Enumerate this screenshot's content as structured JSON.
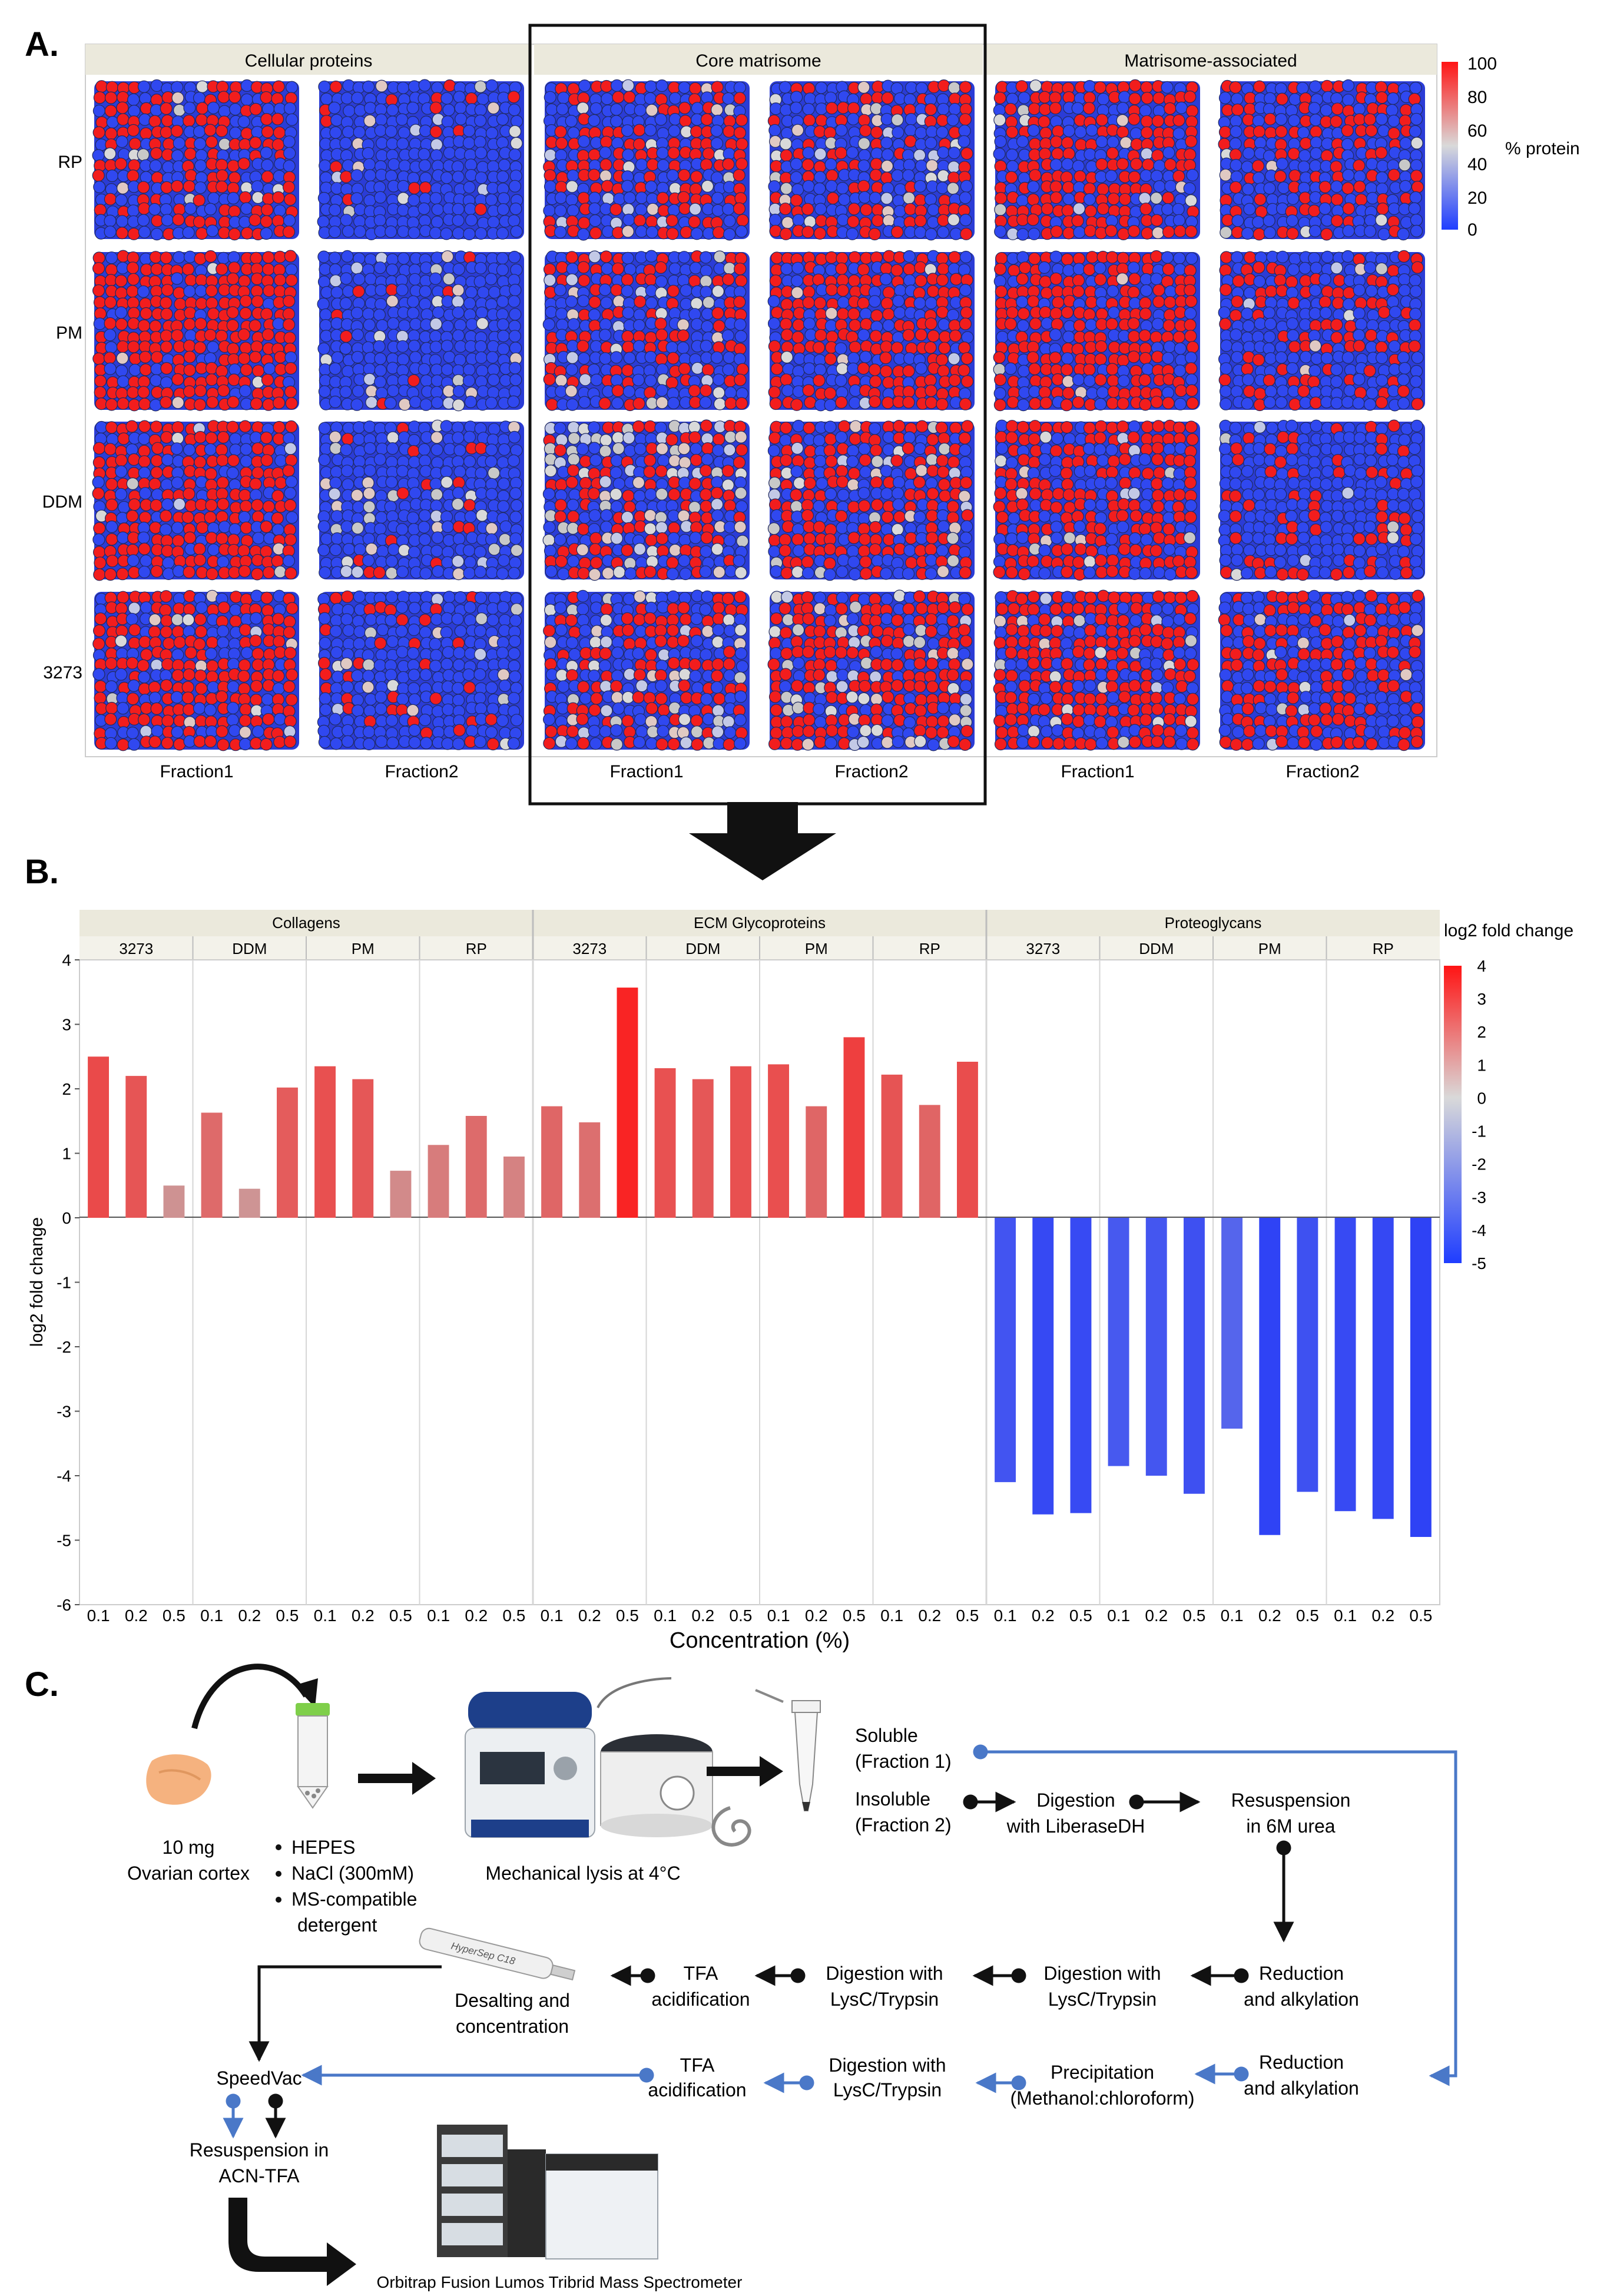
{
  "panelA": {
    "label": "A.",
    "groups": [
      "Cellular proteins",
      "Core matrisome",
      "Matrisome-associated"
    ],
    "rows": [
      "RP",
      "PM",
      "DDM",
      "3273"
    ],
    "fractions": [
      "Fraction1",
      "Fraction2"
    ],
    "colorbar": {
      "title": "% protein",
      "ticks": [
        "100",
        "80",
        "60",
        "40",
        "20",
        "0"
      ],
      "high": "#ff1414",
      "mid": "#d9d9d9",
      "low": "#1f3dff"
    },
    "chart_data": {
      "type": "heatmap",
      "x": [
        "Fraction1",
        "Fraction2"
      ],
      "facets": [
        "Cellular proteins",
        "Core matrisome",
        "Matrisome-associated"
      ],
      "y": [
        "RP",
        "PM",
        "DDM",
        "3273"
      ],
      "red_share": [
        [
          0.55,
          0.04,
          0.5,
          0.4,
          0.6,
          0.45
        ],
        [
          0.8,
          0.03,
          0.4,
          0.62,
          0.65,
          0.35
        ],
        [
          0.72,
          0.07,
          0.35,
          0.55,
          0.58,
          0.25
        ],
        [
          0.68,
          0.12,
          0.4,
          0.55,
          0.65,
          0.5
        ]
      ],
      "grey_share": [
        [
          0.05,
          0.06,
          0.1,
          0.15,
          0.05,
          0.03
        ],
        [
          0.02,
          0.1,
          0.12,
          0.05,
          0.03,
          0.02
        ],
        [
          0.03,
          0.15,
          0.3,
          0.12,
          0.06,
          0.03
        ],
        [
          0.08,
          0.05,
          0.2,
          0.25,
          0.08,
          0.04
        ]
      ]
    }
  },
  "panelB": {
    "label": "B.",
    "ylabel": "log2 fold change",
    "xlabel": "Concentration (%)",
    "colorbar_title": "log2 fold change",
    "colorbar_ticks": [
      "4",
      "3",
      "2",
      "1",
      "0",
      "-1",
      "-2",
      "-3",
      "-4",
      "-5"
    ],
    "chart_data": {
      "type": "bar",
      "ylim": [
        -6,
        4
      ],
      "yticks": [
        "4",
        "3",
        "2",
        "1",
        "0",
        "-1",
        "-2",
        "-3",
        "-4",
        "-5",
        "-6"
      ],
      "groups": [
        "Collagens",
        "ECM Glycoproteins",
        "Proteoglycans"
      ],
      "detergents": [
        "3273",
        "DDM",
        "PM",
        "RP"
      ],
      "concentrations": [
        "0.1",
        "0.2",
        "0.5"
      ],
      "values": [
        [
          [
            2.5,
            2.2,
            0.5
          ],
          [
            1.63,
            0.45,
            2.02
          ],
          [
            2.35,
            2.15,
            0.73
          ],
          [
            1.13,
            1.58,
            0.95
          ]
        ],
        [
          [
            1.73,
            1.48,
            3.57
          ],
          [
            2.32,
            2.15,
            2.35
          ],
          [
            2.38,
            1.73,
            2.8
          ],
          [
            2.22,
            1.75,
            2.42
          ]
        ],
        [
          [
            -4.1,
            -4.6,
            -4.58
          ],
          [
            -3.85,
            -4.0,
            -4.28
          ],
          [
            -3.27,
            -4.92,
            -4.25
          ],
          [
            -4.55,
            -4.67,
            -4.95
          ]
        ]
      ]
    }
  },
  "panelC": {
    "label": "C.",
    "sample": [
      "10 mg",
      "Ovarian cortex"
    ],
    "buffer": [
      "HEPES",
      "NaCl (300mM)",
      "MS-compatible",
      "detergent"
    ],
    "lysis": "Mechanical lysis at 4°C",
    "soluble": [
      "Soluble",
      "(Fraction 1)"
    ],
    "insoluble": [
      "Insoluble",
      "(Fraction 2)"
    ],
    "digestion_liberase": [
      "Digestion",
      "with LiberaseDH"
    ],
    "resuspension_urea": [
      "Resuspension",
      "in 6M urea"
    ],
    "reduction": [
      "Reduction",
      "and alkylation"
    ],
    "digest_lysc": [
      "Digestion with",
      "LysC/Trypsin"
    ],
    "tfa": [
      "TFA",
      "acidification"
    ],
    "desalting": [
      "Desalting and",
      "concentration"
    ],
    "column_label": "HyperSep C18",
    "speedvac": "SpeedVac",
    "precipitation": [
      "Precipitation",
      "(Methanol:chloroform)"
    ],
    "resuspension_acn": [
      "Resuspension in",
      "ACN-TFA"
    ],
    "ms": "Orbitrap Fusion Lumos Tribrid Mass Spectrometer",
    "colors": {
      "black_path": "#111111",
      "blue_path": "#4a78c8"
    }
  }
}
